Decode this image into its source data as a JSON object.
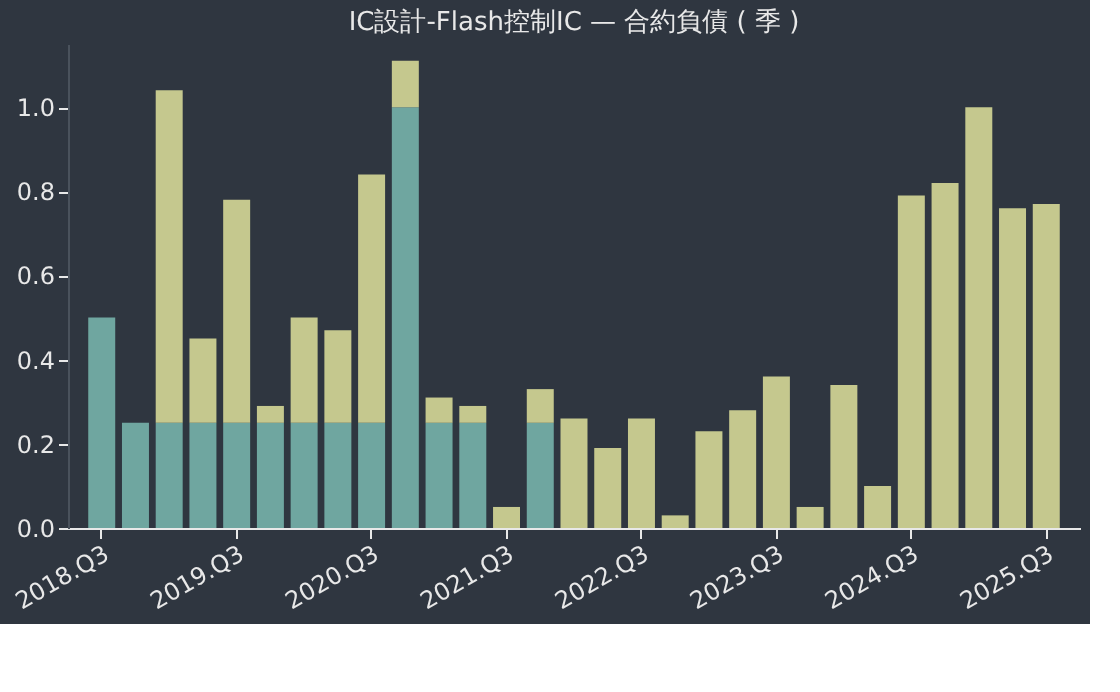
{
  "chart_data": {
    "type": "bar",
    "title": "IC設計-Flash控制IC — 合約負債 ( 季 )",
    "categories": [
      "2018.Q3",
      null,
      null,
      null,
      "2019.Q3",
      null,
      null,
      null,
      "2020.Q3",
      null,
      null,
      null,
      "2021.Q3",
      null,
      null,
      null,
      "2022.Q3",
      null,
      null,
      null,
      "2023.Q3",
      null,
      null,
      null,
      "2024.Q3",
      null,
      null,
      null,
      "2025.Q3"
    ],
    "stacked": true,
    "series": [
      {
        "color": "#6fa6a0",
        "values": [
          0.5,
          0.25,
          0.25,
          0.25,
          0.25,
          0.25,
          0.25,
          0.25,
          0.25,
          1.0,
          0.25,
          0.25,
          null,
          0.25,
          null,
          null,
          null,
          null,
          null,
          null,
          null,
          null,
          null,
          null,
          null,
          null,
          null,
          null,
          null
        ]
      },
      {
        "color": "#c5c88e",
        "values": [
          null,
          null,
          0.79,
          0.2,
          0.53,
          0.04,
          0.25,
          0.22,
          0.59,
          0.11,
          0.06,
          0.04,
          0.05,
          0.08,
          0.26,
          0.19,
          0.26,
          0.03,
          0.23,
          0.28,
          0.36,
          0.05,
          0.34,
          0.1,
          0.79,
          0.82,
          1.0,
          0.76,
          0.77
        ]
      }
    ],
    "ylim": [
      0,
      1.15
    ],
    "yticks": [
      {
        "value": 0,
        "label": "0.0"
      },
      {
        "value": 0.2,
        "label": "0.2"
      },
      {
        "value": 0.4,
        "label": "0.4"
      },
      {
        "value": 0.6,
        "label": "0.6"
      },
      {
        "value": 0.8,
        "label": "0.8"
      },
      {
        "value": 1.0,
        "label": "1.0"
      }
    ],
    "grid": false
  }
}
